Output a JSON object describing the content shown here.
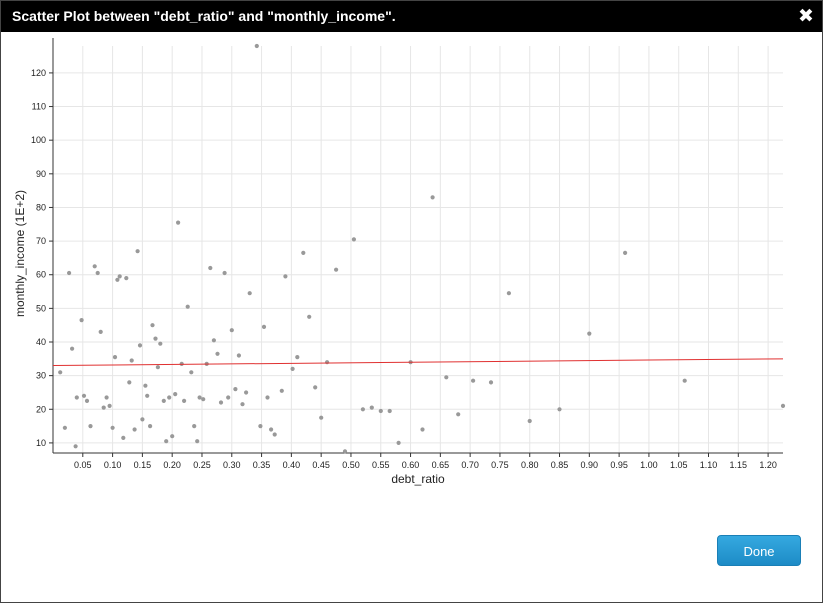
{
  "dialog": {
    "title": "Scatter Plot between \"debt_ratio\" and \"monthly_income\".",
    "close_icon": "close-icon",
    "close_glyph": "✖",
    "done_label": "Done"
  },
  "colors": {
    "points": "#999999",
    "trend": "#e03030",
    "grid": "#e6e6e6",
    "button": "#2a9bd8",
    "titlebar": "#000000"
  },
  "chart_data": {
    "type": "scatter",
    "xlabel": "debt_ratio",
    "ylabel": "monthly_income (1E+2)",
    "xlim": [
      0,
      1.225
    ],
    "ylim": [
      7,
      128
    ],
    "grid": true,
    "x_ticks": [
      0.05,
      0.1,
      0.15,
      0.2,
      0.25,
      0.3,
      0.35,
      0.4,
      0.45,
      0.5,
      0.55,
      0.6,
      0.65,
      0.7,
      0.75,
      0.8,
      0.85,
      0.9,
      0.95,
      1.0,
      1.05,
      1.1,
      1.15,
      1.2
    ],
    "x_tick_labels": [
      "0.05",
      "0.10",
      "0.15",
      "0.20",
      "0.25",
      "0.30",
      "0.35",
      "0.40",
      "0.45",
      "0.50",
      "0.55",
      "0.60",
      "0.65",
      "0.70",
      "0.75",
      "0.80",
      "0.85",
      "0.90",
      "0.95",
      "1.00",
      "1.05",
      "1.10",
      "1.15",
      "1.20"
    ],
    "y_ticks": [
      10,
      20,
      30,
      40,
      50,
      60,
      70,
      80,
      90,
      100,
      110,
      120
    ],
    "y_tick_labels": [
      "10",
      "20",
      "30",
      "40",
      "50",
      "60",
      "70",
      "80",
      "90",
      "100",
      "110",
      "120"
    ],
    "trendline": {
      "x": [
        0.0,
        1.225
      ],
      "y": [
        33.0,
        35.0
      ]
    },
    "points": [
      [
        0.012,
        31
      ],
      [
        0.02,
        14.5
      ],
      [
        0.027,
        60.5
      ],
      [
        0.032,
        38
      ],
      [
        0.038,
        9
      ],
      [
        0.04,
        23.5
      ],
      [
        0.048,
        46.5
      ],
      [
        0.052,
        24
      ],
      [
        0.057,
        22.5
      ],
      [
        0.063,
        15
      ],
      [
        0.07,
        62.5
      ],
      [
        0.075,
        60.5
      ],
      [
        0.08,
        43
      ],
      [
        0.085,
        20.5
      ],
      [
        0.09,
        23.5
      ],
      [
        0.095,
        21
      ],
      [
        0.1,
        14.5
      ],
      [
        0.104,
        35.5
      ],
      [
        0.108,
        58.5
      ],
      [
        0.112,
        59.5
      ],
      [
        0.118,
        11.5
      ],
      [
        0.123,
        59
      ],
      [
        0.128,
        28
      ],
      [
        0.132,
        34.5
      ],
      [
        0.137,
        14
      ],
      [
        0.142,
        67
      ],
      [
        0.146,
        39
      ],
      [
        0.15,
        17
      ],
      [
        0.155,
        27
      ],
      [
        0.158,
        24
      ],
      [
        0.163,
        15
      ],
      [
        0.167,
        45
      ],
      [
        0.172,
        41
      ],
      [
        0.176,
        32.5
      ],
      [
        0.18,
        39.5
      ],
      [
        0.186,
        22.5
      ],
      [
        0.19,
        10.5
      ],
      [
        0.195,
        23.5
      ],
      [
        0.2,
        12
      ],
      [
        0.205,
        24.5
      ],
      [
        0.21,
        75.5
      ],
      [
        0.216,
        33.5
      ],
      [
        0.22,
        22.5
      ],
      [
        0.226,
        50.5
      ],
      [
        0.232,
        31
      ],
      [
        0.237,
        15
      ],
      [
        0.242,
        10.5
      ],
      [
        0.246,
        23.5
      ],
      [
        0.252,
        23
      ],
      [
        0.258,
        33.5
      ],
      [
        0.264,
        62
      ],
      [
        0.27,
        40.5
      ],
      [
        0.276,
        36.5
      ],
      [
        0.282,
        22
      ],
      [
        0.288,
        60.5
      ],
      [
        0.294,
        23.5
      ],
      [
        0.3,
        43.5
      ],
      [
        0.306,
        26
      ],
      [
        0.312,
        36
      ],
      [
        0.318,
        21.5
      ],
      [
        0.324,
        25
      ],
      [
        0.33,
        54.5
      ],
      [
        0.342,
        128
      ],
      [
        0.348,
        15
      ],
      [
        0.354,
        44.5
      ],
      [
        0.36,
        23.5
      ],
      [
        0.366,
        14
      ],
      [
        0.372,
        12.5
      ],
      [
        0.384,
        25.5
      ],
      [
        0.39,
        59.5
      ],
      [
        0.402,
        32
      ],
      [
        0.41,
        35.5
      ],
      [
        0.42,
        66.5
      ],
      [
        0.43,
        47.5
      ],
      [
        0.44,
        26.5
      ],
      [
        0.45,
        17.5
      ],
      [
        0.46,
        34
      ],
      [
        0.475,
        61.5
      ],
      [
        0.49,
        7.5
      ],
      [
        0.505,
        70.5
      ],
      [
        0.52,
        20
      ],
      [
        0.535,
        20.5
      ],
      [
        0.55,
        19.5
      ],
      [
        0.565,
        19.5
      ],
      [
        0.58,
        10
      ],
      [
        0.6,
        34
      ],
      [
        0.62,
        14
      ],
      [
        0.637,
        83
      ],
      [
        0.66,
        29.5
      ],
      [
        0.68,
        18.5
      ],
      [
        0.705,
        28.5
      ],
      [
        0.735,
        28
      ],
      [
        0.765,
        54.5
      ],
      [
        0.8,
        16.5
      ],
      [
        0.85,
        20
      ],
      [
        0.9,
        42.5
      ],
      [
        0.96,
        66.5
      ],
      [
        1.06,
        28.5
      ],
      [
        1.225,
        21
      ]
    ]
  }
}
